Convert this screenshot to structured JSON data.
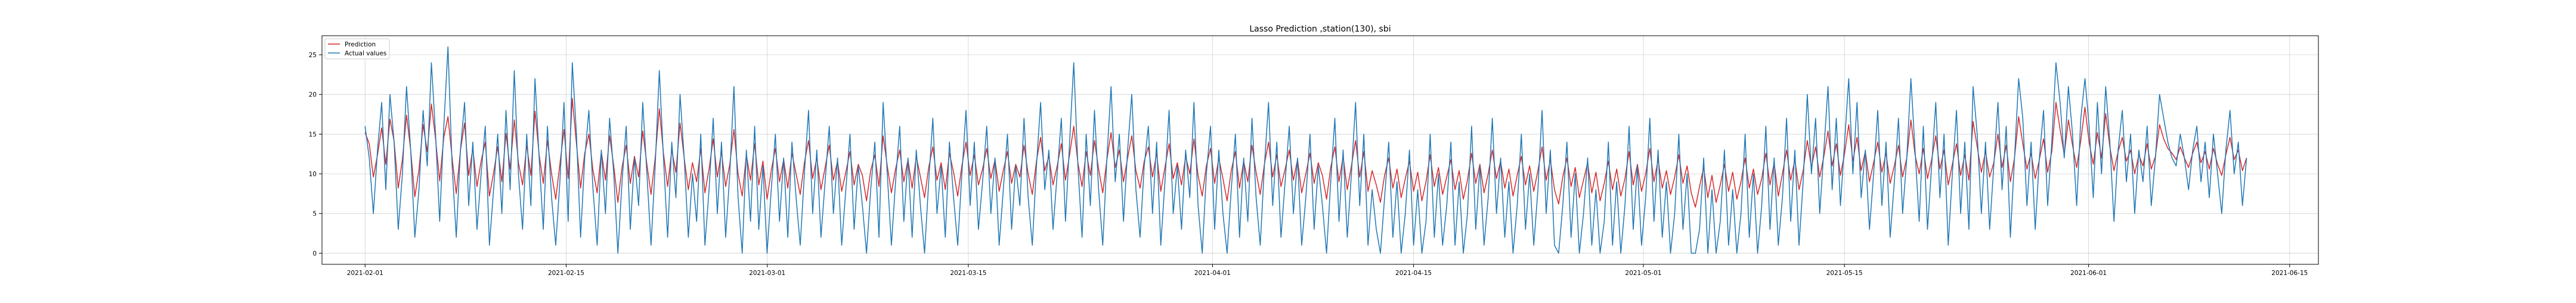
{
  "chart_data": {
    "type": "line",
    "title": "Lasso Prediction ,station(130), sbi",
    "xlabel": "",
    "ylabel": "",
    "x_range": [
      "2021-01-29",
      "2021-06-17"
    ],
    "x_ticks": [
      "2021-02-01",
      "2021-02-15",
      "2021-03-01",
      "2021-03-15",
      "2021-04-01",
      "2021-04-15",
      "2021-05-01",
      "2021-05-15",
      "2021-06-01",
      "2021-06-15"
    ],
    "ylim": [
      -1.4,
      27.4
    ],
    "y_ticks": [
      0,
      5,
      10,
      15,
      20,
      25
    ],
    "y_tick_labels": [
      "0",
      "5",
      "10",
      "15",
      "20",
      "25"
    ],
    "grid": true,
    "legend_position": "top-left",
    "series": [
      {
        "name": "Prediction",
        "color": "#d62728",
        "x_start": "2021-02-01",
        "x_end": "2021-06-12",
        "values": [
          15.2,
          13.8,
          9.6,
          12.4,
          15.8,
          11.2,
          16.9,
          14.1,
          8.2,
          11.8,
          17.4,
          13.0,
          7.1,
          10.5,
          16.2,
          12.8,
          18.8,
          14.4,
          9.1,
          14.6,
          17.2,
          12.0,
          7.5,
          12.9,
          16.4,
          9.8,
          13.2,
          8.4,
          11.6,
          14.0,
          7.2,
          10.1,
          13.4,
          9.0,
          15.1,
          10.6,
          16.8,
          11.4,
          8.6,
          13.6,
          9.8,
          17.9,
          12.4,
          8.8,
          14.2,
          10.0,
          6.8,
          11.2,
          15.6,
          9.4,
          19.5,
          13.8,
          8.2,
          12.6,
          15.0,
          10.4,
          7.6,
          12.8,
          9.2,
          14.8,
          11.0,
          6.4,
          10.8,
          13.6,
          8.8,
          12.2,
          9.6,
          15.4,
          11.2,
          7.4,
          12.0,
          18.2,
          12.6,
          8.4,
          13.0,
          10.2,
          16.4,
          12.0,
          8.0,
          11.4,
          9.0,
          13.2,
          7.6,
          10.6,
          14.4,
          9.6,
          12.8,
          8.4,
          11.2,
          15.6,
          10.0,
          7.2,
          12.4,
          9.2,
          13.8,
          8.6,
          11.6,
          6.8,
          10.4,
          13.2,
          9.0,
          11.8,
          8.2,
          12.6,
          10.0,
          7.4,
          11.4,
          14.2,
          9.4,
          12.0,
          8.0,
          10.8,
          13.6,
          9.2,
          11.6,
          7.8,
          10.2,
          12.8,
          8.6,
          11.2,
          9.8,
          6.6,
          10.4,
          12.4,
          8.4,
          14.8,
          11.0,
          7.6,
          10.6,
          13.0,
          9.0,
          11.8,
          8.2,
          12.2,
          9.6,
          7.0,
          10.8,
          13.4,
          9.2,
          11.4,
          8.0,
          12.6,
          10.2,
          7.2,
          11.0,
          14.0,
          9.8,
          12.4,
          8.6,
          10.6,
          13.2,
          9.4,
          11.8,
          7.8,
          10.4,
          12.8,
          8.8,
          11.2,
          9.6,
          13.6,
          10.0,
          7.4,
          11.6,
          14.6,
          10.4,
          12.2,
          8.6,
          11.0,
          13.8,
          9.2,
          12.4,
          16.0,
          11.4,
          8.4,
          12.8,
          9.8,
          14.2,
          10.6,
          7.6,
          11.8,
          15.2,
          10.8,
          13.0,
          9.0,
          12.0,
          14.8,
          10.4,
          8.2,
          11.6,
          13.4,
          9.6,
          12.6,
          7.8,
          10.8,
          13.8,
          9.4,
          11.4,
          8.6,
          12.2,
          10.0,
          14.4,
          9.8,
          7.2,
          11.0,
          13.2,
          8.8,
          12.0,
          9.4,
          6.6,
          10.4,
          12.8,
          8.2,
          11.6,
          9.0,
          13.6,
          10.2,
          7.4,
          11.2,
          14.0,
          9.6,
          12.4,
          8.4,
          10.6,
          13.0,
          9.2,
          11.8,
          7.6,
          10.0,
          12.6,
          8.8,
          11.4,
          9.8,
          6.8,
          10.8,
          13.4,
          9.0,
          12.2,
          8.0,
          11.0,
          14.2,
          9.6,
          12.8,
          7.8,
          10.4,
          8.6,
          6.4,
          9.8,
          12.0,
          8.2,
          10.6,
          7.0,
          9.4,
          11.6,
          7.8,
          10.2,
          6.6,
          9.0,
          12.4,
          8.4,
          10.8,
          7.4,
          9.6,
          11.8,
          8.0,
          10.4,
          6.8,
          9.2,
          12.6,
          8.8,
          11.2,
          7.6,
          10.0,
          13.0,
          9.4,
          11.6,
          8.2,
          10.6,
          7.2,
          9.8,
          12.2,
          8.6,
          11.0,
          7.8,
          10.4,
          13.4,
          9.2,
          11.8,
          8.0,
          6.2,
          9.6,
          12.0,
          8.4,
          10.8,
          7.0,
          9.2,
          11.4,
          7.6,
          10.2,
          6.6,
          8.8,
          11.6,
          8.0,
          10.6,
          7.2,
          9.4,
          12.8,
          8.6,
          11.2,
          7.8,
          10.0,
          13.2,
          9.0,
          11.8,
          8.2,
          10.4,
          7.4,
          9.6,
          12.4,
          8.8,
          11.0,
          7.6,
          5.8,
          8.4,
          10.8,
          7.0,
          9.8,
          6.4,
          8.6,
          11.2,
          7.8,
          10.2,
          6.8,
          9.0,
          12.0,
          8.2,
          10.6,
          7.4,
          9.4,
          12.6,
          8.6,
          11.4,
          7.2,
          10.0,
          13.0,
          9.2,
          11.8,
          8.0,
          10.4,
          14.2,
          10.8,
          13.4,
          9.6,
          12.2,
          15.4,
          11.0,
          13.8,
          9.8,
          12.6,
          16.2,
          11.6,
          14.6,
          10.4,
          12.8,
          9.0,
          11.4,
          14.0,
          10.2,
          12.6,
          8.8,
          11.0,
          13.6,
          9.6,
          12.0,
          16.8,
          12.4,
          10.0,
          13.2,
          9.4,
          11.8,
          14.8,
          10.6,
          13.0,
          8.6,
          11.2,
          13.8,
          9.8,
          12.4,
          9.2,
          16.6,
          13.4,
          10.2,
          12.8,
          9.6,
          11.4,
          15.0,
          10.8,
          13.6,
          9.0,
          12.0,
          17.2,
          13.8,
          10.6,
          12.6,
          9.4,
          11.8,
          14.4,
          10.2,
          12.8,
          19.0,
          15.6,
          12.4,
          16.8,
          13.6,
          10.8,
          14.2,
          18.4,
          14.0,
          11.2,
          15.2,
          12.0,
          17.6,
          13.4,
          10.4,
          12.8,
          14.6,
          11.6,
          13.0,
          10.0,
          12.4,
          11.0,
          13.8,
          10.6,
          12.2,
          16.2,
          14.4,
          13.2,
          12.6,
          11.8,
          13.4,
          12.0,
          10.8,
          12.6,
          14.0,
          11.4,
          12.8,
          10.6,
          13.2,
          11.2,
          9.8,
          12.4,
          14.6,
          11.8,
          13.0,
          10.4,
          12.0
        ],
        "note": "values sampled at uniform time steps between x_start and x_end"
      },
      {
        "name": "Actual values",
        "color": "#1f77b4",
        "x_start": "2021-02-01",
        "x_end": "2021-06-12",
        "values": [
          16.0,
          12.0,
          5.0,
          13.0,
          19.0,
          8.0,
          20.0,
          14.0,
          3.0,
          10.0,
          21.0,
          13.0,
          2.0,
          8.0,
          18.0,
          11.0,
          24.0,
          15.0,
          4.0,
          16.0,
          26.0,
          11.0,
          2.0,
          13.0,
          19.0,
          6.0,
          14.0,
          3.0,
          10.0,
          16.0,
          1.0,
          8.0,
          15.0,
          5.0,
          18.0,
          8.0,
          23.0,
          10.0,
          3.0,
          15.0,
          6.0,
          22.0,
          12.0,
          3.0,
          16.0,
          7.0,
          1.0,
          9.0,
          19.0,
          4.0,
          24.0,
          15.0,
          2.0,
          12.0,
          18.0,
          8.0,
          1.0,
          13.0,
          5.0,
          17.0,
          10.0,
          0.0,
          9.0,
          16.0,
          3.0,
          12.0,
          6.0,
          19.0,
          10.0,
          1.0,
          11.0,
          23.0,
          12.0,
          2.0,
          14.0,
          7.0,
          20.0,
          12.0,
          2.0,
          10.0,
          4.0,
          15.0,
          1.0,
          8.0,
          17.0,
          5.0,
          14.0,
          2.0,
          10.0,
          21.0,
          7.0,
          0.0,
          13.0,
          4.0,
          16.0,
          3.0,
          11.0,
          0.0,
          8.0,
          15.0,
          4.0,
          12.0,
          2.0,
          14.0,
          7.0,
          1.0,
          10.0,
          18.0,
          5.0,
          13.0,
          2.0,
          9.0,
          16.0,
          5.0,
          12.0,
          1.0,
          8.0,
          15.0,
          3.0,
          11.0,
          6.0,
          0.0,
          8.0,
          14.0,
          2.0,
          19.0,
          10.0,
          1.0,
          9.0,
          16.0,
          4.0,
          12.0,
          2.0,
          13.0,
          6.0,
          0.0,
          9.0,
          17.0,
          5.0,
          11.0,
          2.0,
          14.0,
          7.0,
          1.0,
          10.0,
          18.0,
          6.0,
          14.0,
          3.0,
          9.0,
          16.0,
          5.0,
          12.0,
          1.0,
          8.0,
          15.0,
          3.0,
          11.0,
          6.0,
          17.0,
          7.0,
          1.0,
          11.0,
          19.0,
          8.0,
          13.0,
          3.0,
          10.0,
          17.0,
          4.0,
          14.0,
          24.0,
          11.0,
          2.0,
          15.0,
          6.0,
          18.0,
          8.0,
          1.0,
          12.0,
          21.0,
          9.0,
          15.0,
          4.0,
          13.0,
          20.0,
          8.0,
          2.0,
          11.0,
          16.0,
          5.0,
          14.0,
          1.0,
          9.0,
          18.0,
          5.0,
          11.0,
          3.0,
          13.0,
          7.0,
          19.0,
          6.0,
          0.0,
          10.0,
          16.0,
          3.0,
          13.0,
          5.0,
          0.0,
          8.0,
          15.0,
          2.0,
          12.0,
          4.0,
          17.0,
          7.0,
          1.0,
          11.0,
          19.0,
          6.0,
          14.0,
          2.0,
          9.0,
          16.0,
          5.0,
          12.0,
          1.0,
          7.0,
          15.0,
          3.0,
          11.0,
          6.0,
          0.0,
          9.0,
          17.0,
          4.0,
          13.0,
          2.0,
          10.0,
          19.0,
          6.0,
          15.0,
          1.0,
          8.0,
          3.0,
          0.0,
          7.0,
          14.0,
          2.0,
          9.0,
          0.0,
          5.0,
          13.0,
          1.0,
          8.0,
          0.0,
          4.0,
          15.0,
          2.0,
          10.0,
          1.0,
          6.0,
          14.0,
          1.0,
          9.0,
          0.0,
          5.0,
          16.0,
          3.0,
          11.0,
          1.0,
          7.0,
          17.0,
          5.0,
          12.0,
          2.0,
          9.0,
          0.0,
          6.0,
          15.0,
          3.0,
          10.0,
          1.0,
          8.0,
          18.0,
          5.0,
          13.0,
          1.0,
          0.0,
          6.0,
          14.0,
          2.0,
          10.0,
          0.0,
          5.0,
          12.0,
          1.0,
          8.0,
          0.0,
          4.0,
          14.0,
          1.0,
          9.0,
          0.0,
          6.0,
          16.0,
          3.0,
          11.0,
          1.0,
          7.0,
          17.0,
          4.0,
          13.0,
          2.0,
          9.0,
          0.0,
          5.0,
          15.0,
          3.0,
          10.0,
          0.0,
          0.0,
          3.0,
          12.0,
          0.0,
          8.0,
          0.0,
          4.0,
          13.0,
          1.0,
          8.0,
          0.0,
          5.0,
          15.0,
          2.0,
          10.0,
          0.0,
          6.0,
          16.0,
          3.0,
          12.0,
          1.0,
          7.0,
          17.0,
          4.0,
          13.0,
          1.0,
          9.0,
          20.0,
          10.0,
          17.0,
          5.0,
          13.0,
          21.0,
          8.0,
          17.0,
          6.0,
          14.0,
          22.0,
          10.0,
          19.0,
          7.0,
          13.0,
          3.0,
          10.0,
          18.0,
          6.0,
          14.0,
          2.0,
          9.0,
          17.0,
          5.0,
          12.0,
          22.0,
          13.0,
          4.0,
          16.0,
          3.0,
          11.0,
          19.0,
          7.0,
          15.0,
          1.0,
          10.0,
          18.0,
          5.0,
          14.0,
          3.0,
          21.0,
          15.0,
          5.0,
          14.0,
          3.0,
          11.0,
          19.0,
          8.0,
          16.0,
          2.0,
          12.0,
          22.0,
          17.0,
          6.0,
          14.0,
          3.0,
          12.0,
          18.0,
          6.0,
          14.0,
          24.0,
          19.0,
          12.0,
          21.0,
          15.0,
          6.0,
          17.0,
          22.0,
          16.0,
          7.0,
          19.0,
          10.0,
          21.0,
          14.0,
          4.0,
          13.0,
          18.0,
          9.0,
          15.0,
          5.0,
          13.0,
          9.0,
          16.0,
          6.0,
          12.0,
          20.0,
          17.0,
          14.0,
          12.0,
          11.0,
          15.0,
          12.0,
          8.0,
          13.0,
          16.0,
          9.0,
          14.0,
          7.0,
          15.0,
          10.0,
          5.0,
          13.0,
          18.0,
          10.0,
          14.0,
          6.0,
          12.0
        ],
        "note": "values sampled at uniform time steps between x_start and x_end"
      }
    ]
  }
}
